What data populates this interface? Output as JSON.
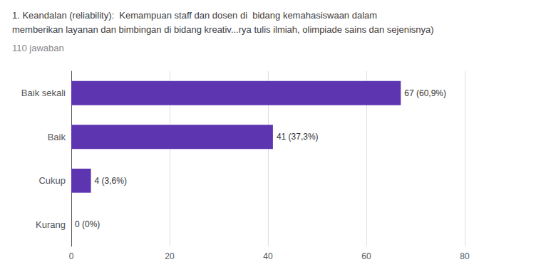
{
  "chart_data": {
    "type": "bar",
    "orientation": "horizontal",
    "title": "1. Keandalan (reliability):  Kemampuan staff dan dosen di  bidang kemahasiswaan dalam\nmemberikan layanan dan bimbingan di bidang kreativ...rya tulis ilmiah, olimpiade sains dan sejenisnya)",
    "subtitle": "110 jawaban",
    "categories": [
      "Kurang",
      "Cukup",
      "Baik",
      "Baik sekali"
    ],
    "values": [
      0,
      4,
      41,
      67
    ],
    "value_labels": [
      "0 (0%)",
      "4 (3,6%)",
      "41 (37,3%)",
      "67 (60,9%)"
    ],
    "color": "#5e35b1",
    "xlim": [
      0,
      80
    ],
    "xticks": [
      0,
      20,
      40,
      60,
      80
    ],
    "grid": true
  }
}
